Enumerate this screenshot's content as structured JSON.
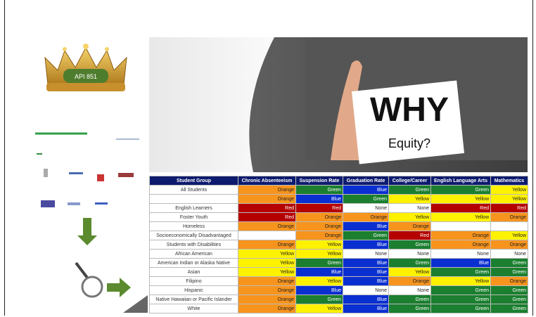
{
  "crown": {
    "label": "API 851"
  },
  "photo": {
    "sign_title": "WHY",
    "sign_subtitle": "Equity?"
  },
  "table": {
    "header": [
      "Student Group",
      "Chronic Absenteeism",
      "Suspension Rate",
      "Graduation Rate",
      "College/Career",
      "English Language Arts",
      "Mathematics"
    ],
    "rows": [
      [
        "All Students",
        "Orange",
        "Green",
        "Blue",
        "Green",
        "Green",
        "Yellow"
      ],
      [
        null,
        "Orange",
        "Blue",
        "Green",
        "Yellow",
        "Yellow",
        "Yellow"
      ],
      [
        "English Learners",
        "Red",
        "Red",
        "None",
        "None",
        "Red",
        "Red"
      ],
      [
        "Foster Youth",
        "Red",
        "Orange",
        "Orange",
        "Yellow",
        "Yellow",
        "Orange"
      ],
      [
        "Homeless",
        "Orange",
        "Orange",
        "Blue",
        "Orange",
        null,
        null
      ],
      [
        "Socioeconomically Disadvantaged",
        null,
        "Orange",
        "Green",
        "Red",
        "Orange",
        "Yellow"
      ],
      [
        "Students with Disabilities",
        "Orange",
        "Yellow",
        "Blue",
        "Green",
        "Orange",
        "Orange"
      ],
      [
        "African American",
        "Yellow",
        "Yellow",
        "None",
        "None",
        "None",
        "None"
      ],
      [
        "American Indian or Alaska Native",
        "Yellow",
        "Green",
        "Blue",
        "Green",
        "Blue",
        "Green"
      ],
      [
        "Asian",
        "Yellow",
        "Blue",
        "Blue",
        "Yellow",
        "Green",
        "Green"
      ],
      [
        "Filipino",
        "Orange",
        "Yellow",
        "Blue",
        "Orange",
        "Yellow",
        "Orange"
      ],
      [
        "Hispanic",
        "Orange",
        "Blue",
        "None",
        "None",
        "Green",
        "Green"
      ],
      [
        "Native Hawaiian or Pacific Islander",
        "Orange",
        "Green",
        "Blue",
        "Green",
        "Green",
        "Green"
      ],
      [
        "White",
        "Orange",
        "Yellow",
        "Blue",
        "Green",
        "Green",
        "Green"
      ]
    ],
    "cell_colors": {
      "Orange": "#f7941d",
      "Green": "#1b7f2f",
      "Blue": "#0a2fd0",
      "Yellow": "#fff200",
      "Red": "#b50000",
      "None": "#ffffff"
    }
  }
}
